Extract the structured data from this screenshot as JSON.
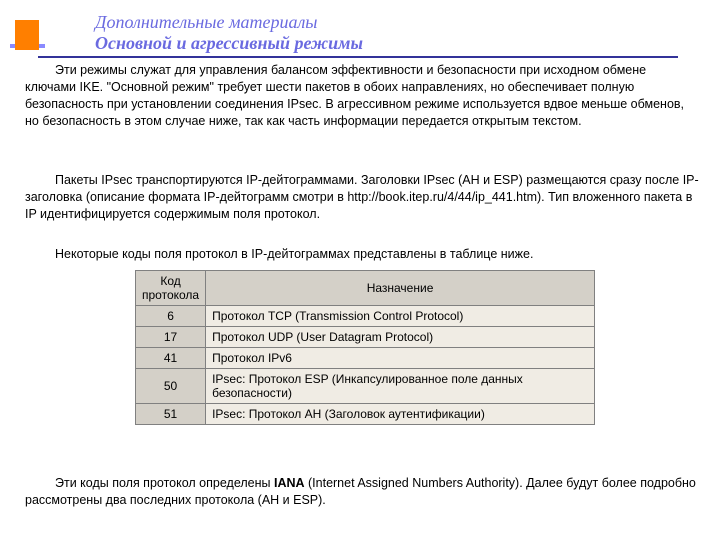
{
  "header": {
    "line1": "Дополнительные материалы",
    "line2": "Основной и агрессивный режимы"
  },
  "paragraphs": {
    "p1": "Эти режимы служат для управления балансом эффективности и безопасности при исходном обмене ключами IKE. \"Основной режим\" требует шести пакетов в обоих направлениях, но обеспечивает полную безопасность при установлении соединения IPsec. В агрессивном режиме используется вдвое меньше обменов, но безопасность в этом случае ниже, так как часть информации передается открытым текстом.",
    "p2": "Пакеты IPsec транспортируются IP-дейтограммами. Заголовки IPsec (AH и ESP) размещаются сразу после IP-заголовка (описание формата IP-дейтограмм смотри в http://book.itep.ru/4/44/ip_441.htm). Тип вложенного пакета в IP идентифицируется содержимым поля протокол.",
    "p3": "Некоторые коды поля протокол в IP-дейтограммах представлены в таблице ниже.",
    "p4_pre": "Эти коды поля протокол определены ",
    "p4_bold": "IANA",
    "p4_post": " (Internet Assigned Numbers Authority). Далее будут более подробно рассмотрены два последних протокола (AH и ESP)."
  },
  "table": {
    "col1": "Код протокола",
    "col2": "Назначение",
    "rows": [
      {
        "code": "6",
        "desc": "Протокол TCP (Transmission Control Protocol)"
      },
      {
        "code": "17",
        "desc": "Протокол UDP (User Datagram Protocol)"
      },
      {
        "code": "41",
        "desc": "Протокол IPv6"
      },
      {
        "code": "50",
        "desc": "IPsec: Протокол ESP (Инкапсулированное поле данных безопасности)"
      },
      {
        "code": "51",
        "desc": "IPsec: Протокол AH (Заголовок аутентификации)"
      }
    ]
  },
  "colors": {
    "accent_orange": "#ff7f00",
    "accent_purple": "#8a8aff",
    "header_text": "#6a6ae0",
    "rule": "#333399",
    "th_bg": "#d4d0c8",
    "td_bg": "#f0ece4",
    "border": "#808080"
  }
}
